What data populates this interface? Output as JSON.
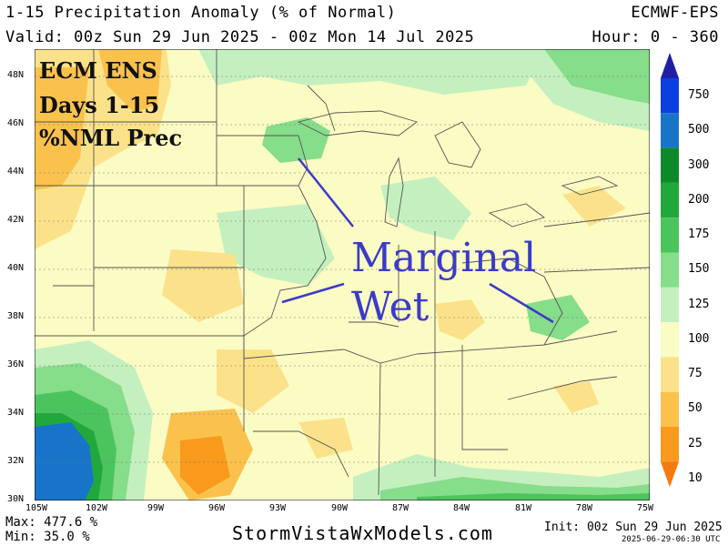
{
  "header": {
    "title": "1-15 Precipitation Anomaly (% of Normal)",
    "valid": "Valid: 00z Sun 29 Jun 2025 - 00z Mon 14 Jul 2025",
    "model": "ECMWF-EPS",
    "hour": "Hour: 0 - 360"
  },
  "overlay_label": {
    "line1": "ECM ENS",
    "line2": "Days 1-15",
    "line3": "%NML Prec"
  },
  "annotation": {
    "line1": "Marginal",
    "line2": "Wet",
    "color": "#3b3bc8"
  },
  "lat_labels": [
    "48N",
    "46N",
    "44N",
    "42N",
    "40N",
    "38N",
    "36N",
    "34N",
    "32N",
    "30N"
  ],
  "lon_labels": [
    "105W",
    "102W",
    "99W",
    "96W",
    "93W",
    "90W",
    "87W",
    "84W",
    "81W",
    "78W",
    "75W"
  ],
  "colorbar": {
    "labels": [
      "750",
      "500",
      "300",
      "200",
      "175",
      "150",
      "125",
      "100",
      "75",
      "50",
      "25",
      "10"
    ],
    "colors": [
      "#1f1fa6",
      "#0b3fe0",
      "#1874c8",
      "#0c8a2a",
      "#21a83c",
      "#4cc45e",
      "#86dd8a",
      "#c4f0bf",
      "#fbfbc4",
      "#fbe28a",
      "#fac24d",
      "#f99a1c",
      "#f67a10"
    ]
  },
  "footer": {
    "max": "Max: 477.6 %",
    "min": "Min: 35.0 %",
    "site": "StormVistaWxModels.com",
    "init": "Init: 00z Sun 29 Jun 2025",
    "stamp": "2025-06-29-06:30 UTC"
  }
}
